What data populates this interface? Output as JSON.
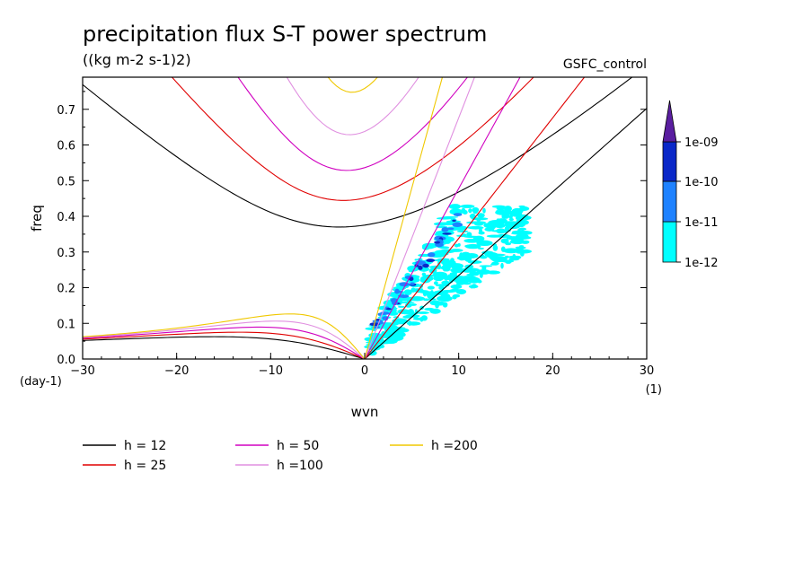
{
  "chart_data": {
    "type": "line",
    "title": "precipitation flux S-T power spectrum",
    "units_label": "((kg m-2 s-1)2)",
    "run_label": "GSFC_control",
    "xlabel": "wvn",
    "ylabel": "freq",
    "x_unit": "(1)",
    "y_unit": "(day-1)",
    "xlim": [
      -30,
      30
    ],
    "ylim": [
      0,
      0.79
    ],
    "xticks": [
      -30,
      -20,
      -10,
      0,
      10,
      20,
      30
    ],
    "yticks": [
      0.0,
      0.1,
      0.2,
      0.3,
      0.4,
      0.5,
      0.6,
      0.7
    ],
    "series": [
      {
        "name": "h = 12",
        "h": 12,
        "color": "#000000"
      },
      {
        "name": "h = 25",
        "h": 25,
        "color": "#e00000"
      },
      {
        "name": "h = 50",
        "h": 50,
        "color": "#d000c0"
      },
      {
        "name": "h =100",
        "h": 100,
        "color": "#e090e0"
      },
      {
        "name": "h =200",
        "h": 200,
        "color": "#f0c800"
      }
    ],
    "colorbar": {
      "labels": [
        "1e-12",
        "1e-11",
        "1e-10",
        "1e-09"
      ],
      "colors": [
        "#00ffff",
        "#1e82ff",
        "#0a28c8",
        "#5a1ea0"
      ]
    }
  }
}
